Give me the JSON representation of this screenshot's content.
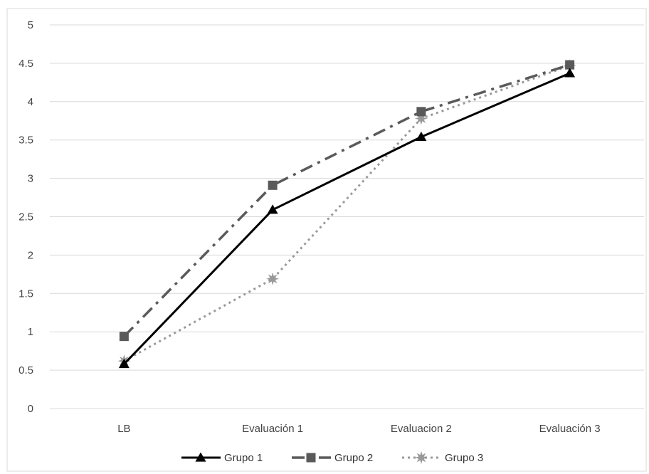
{
  "chart_data": {
    "type": "line",
    "title": "",
    "xlabel": "",
    "ylabel": "",
    "categories": [
      "LB",
      "Evaluación 1",
      "Evaluacion 2",
      "Evaluación 3"
    ],
    "ylim": [
      0,
      5
    ],
    "yticks": [
      "0",
      "0.5",
      "1",
      "1.5",
      "2",
      "2.5",
      "3",
      "3.5",
      "4",
      "4.5",
      "5"
    ],
    "grid": true,
    "legend_position": "bottom",
    "series": [
      {
        "name": "Grupo 1",
        "values": [
          0.58,
          2.59,
          3.54,
          4.37
        ],
        "color": "#000000",
        "marker": "triangle",
        "dash": "solid"
      },
      {
        "name": "Grupo 2",
        "values": [
          0.94,
          2.91,
          3.87,
          4.48
        ],
        "color": "#5a5a5a",
        "marker": "square",
        "dash": "dashdot"
      },
      {
        "name": "Grupo 3",
        "values": [
          0.62,
          1.69,
          3.78,
          4.47
        ],
        "color": "#999999",
        "marker": "star",
        "dash": "dotted"
      }
    ]
  }
}
